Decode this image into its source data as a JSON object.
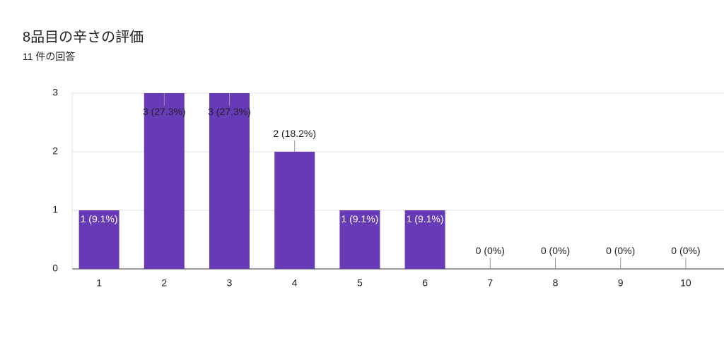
{
  "chart_data": {
    "type": "bar",
    "title": "8品目の辛さの評価",
    "subtitle": "11 件の回答",
    "categories": [
      "1",
      "2",
      "3",
      "4",
      "5",
      "6",
      "7",
      "8",
      "9",
      "10"
    ],
    "values": [
      1,
      3,
      3,
      2,
      1,
      1,
      0,
      0,
      0,
      0
    ],
    "value_labels": [
      "1 (9.1%)",
      "3 (27.3%)",
      "3 (27.3%)",
      "2 (18.2%)",
      "1 (9.1%)",
      "1 (9.1%)",
      "0 (0%)",
      "0 (0%)",
      "0 (0%)",
      "0 (0%)"
    ],
    "color": "#673ab7",
    "ylim": [
      0,
      3
    ],
    "yticks": [
      0,
      1,
      2,
      3
    ],
    "grid": true
  }
}
